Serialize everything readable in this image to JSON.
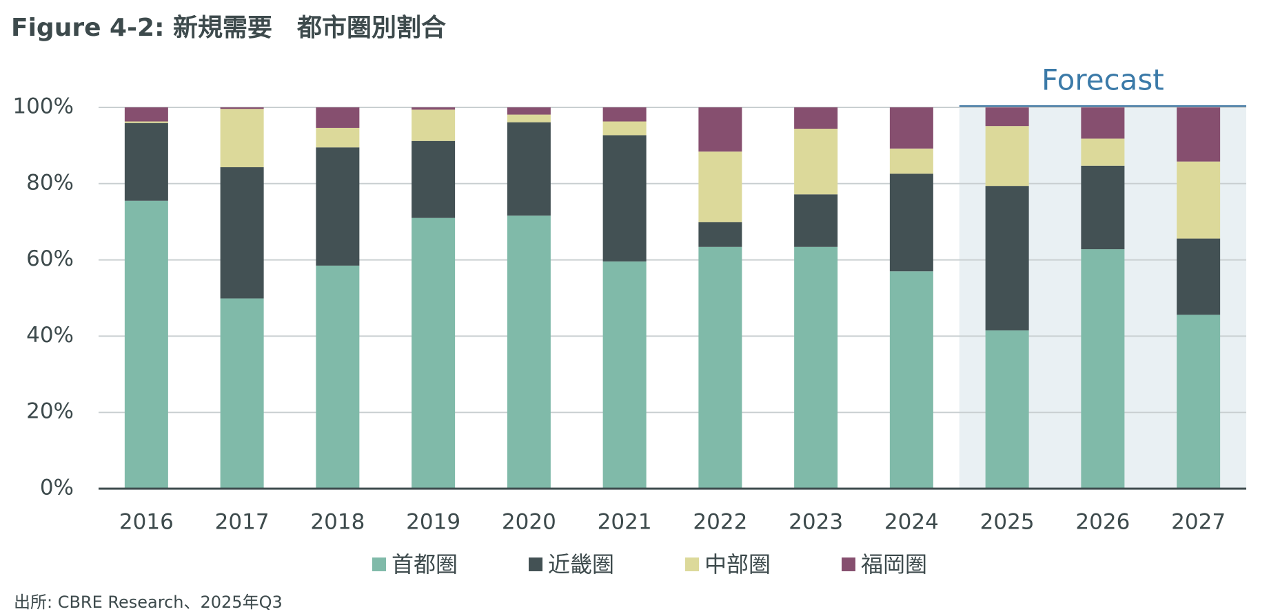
{
  "chart_data": {
    "type": "stacked_bar",
    "title": "Figure 4-2: 新規需要　都市圏別割合",
    "categories": [
      "2016",
      "2017",
      "2018",
      "2019",
      "2020",
      "2021",
      "2022",
      "2023",
      "2024",
      "2025",
      "2026",
      "2027"
    ],
    "series": [
      {
        "name": "首都圏",
        "color": "#80baa9",
        "values": [
          75.5,
          49.9,
          58.5,
          71.0,
          71.6,
          59.6,
          63.4,
          63.4,
          57.0,
          41.5,
          62.8,
          45.6
        ]
      },
      {
        "name": "近畿圏",
        "color": "#435154",
        "values": [
          20.4,
          34.4,
          31.0,
          20.2,
          24.5,
          33.1,
          6.5,
          13.8,
          25.6,
          37.9,
          21.9,
          20.0
        ]
      },
      {
        "name": "中部圏",
        "color": "#dcd99a",
        "values": [
          0.4,
          15.3,
          5.1,
          8.2,
          2.0,
          3.6,
          18.5,
          17.2,
          6.6,
          15.7,
          7.1,
          20.2
        ]
      },
      {
        "name": "福岡圏",
        "color": "#864f6f",
        "values": [
          3.7,
          0.4,
          5.4,
          0.6,
          1.9,
          3.7,
          11.6,
          5.6,
          10.8,
          4.9,
          8.2,
          14.2
        ]
      }
    ],
    "ylim": [
      0,
      100
    ],
    "yticks": [
      {
        "value": 0,
        "label": "0%"
      },
      {
        "value": 20,
        "label": "20%"
      },
      {
        "value": 40,
        "label": "40%"
      },
      {
        "value": 60,
        "label": "60%"
      },
      {
        "value": 80,
        "label": "80%"
      },
      {
        "value": 100,
        "label": "100%"
      }
    ],
    "grid": true,
    "forecast": {
      "label": "Forecast",
      "categories": [
        "2025",
        "2026",
        "2027"
      ]
    },
    "legend": "bottom",
    "source": "出所: CBRE Research、2025年Q3"
  }
}
